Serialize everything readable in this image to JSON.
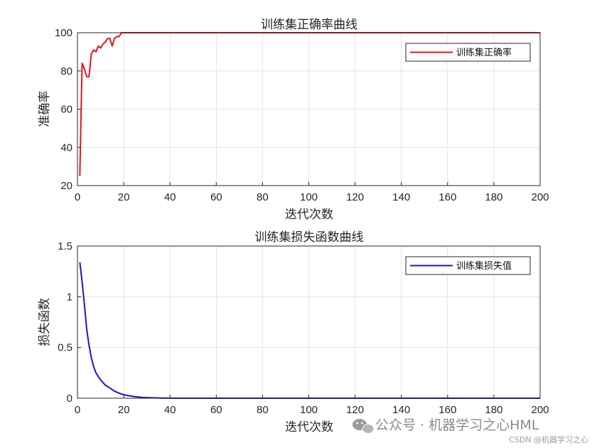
{
  "chart_data": [
    {
      "type": "line",
      "title": "训练集正确率曲线",
      "xlabel": "迭代次数",
      "ylabel": "准确率",
      "xlim": [
        0,
        200
      ],
      "ylim": [
        20,
        100
      ],
      "xticks": [
        0,
        20,
        40,
        60,
        80,
        100,
        120,
        140,
        160,
        180,
        200
      ],
      "yticks": [
        20,
        40,
        60,
        80,
        100
      ],
      "ytick_labels": [
        "20",
        "40",
        "60",
        "80",
        "100"
      ],
      "grid": true,
      "legend_position": "top-right",
      "series": [
        {
          "name": "训练集正确率",
          "color": "#e8141c",
          "x": [
            1,
            2,
            3,
            4,
            5,
            6,
            7,
            8,
            9,
            10,
            11,
            12,
            13,
            14,
            15,
            16,
            17,
            18,
            19,
            20,
            200
          ],
          "y": [
            25,
            84,
            81,
            77,
            77,
            89,
            91,
            90,
            93,
            92,
            94,
            95,
            97,
            97,
            93,
            97,
            98,
            98,
            100,
            100,
            100
          ]
        }
      ]
    },
    {
      "type": "line",
      "title": "训练集损失函数曲线",
      "xlabel": "迭代次数",
      "ylabel": "损失函数",
      "xlim": [
        0,
        200
      ],
      "ylim": [
        0,
        1.5
      ],
      "xticks": [
        0,
        20,
        40,
        60,
        80,
        100,
        120,
        140,
        160,
        180,
        200
      ],
      "yticks": [
        0,
        0.5,
        1,
        1.5
      ],
      "ytick_labels": [
        "0",
        "0.5",
        "1",
        "1.5"
      ],
      "grid": true,
      "legend_position": "top-right",
      "series": [
        {
          "name": "训练集损失值",
          "color": "#1616d8",
          "x": [
            1,
            2,
            3,
            4,
            5,
            6,
            7,
            8,
            10,
            12,
            14,
            16,
            18,
            20,
            22,
            25,
            28,
            32,
            36,
            40,
            50,
            200
          ],
          "y": [
            1.34,
            1.15,
            0.92,
            0.68,
            0.52,
            0.4,
            0.31,
            0.25,
            0.18,
            0.13,
            0.1,
            0.07,
            0.05,
            0.035,
            0.025,
            0.015,
            0.008,
            0.004,
            0.002,
            0.001,
            0.0,
            0.0
          ]
        }
      ]
    }
  ],
  "watermark": {
    "text": "公众号 · 机器学习之心HML",
    "credit": "CSDN @机器学习之心",
    "icon": "wechat-icon"
  }
}
